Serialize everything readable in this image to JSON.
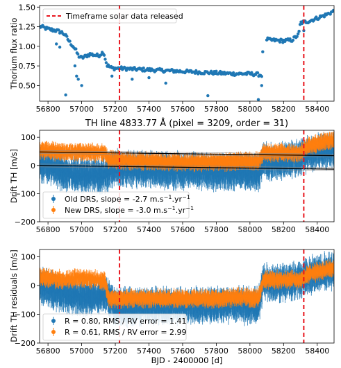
{
  "colors": {
    "blue": "#1f77b4",
    "orange": "#ff7f0e",
    "red": "#e8141c",
    "black": "#000000"
  },
  "xaxis": {
    "label": "BJD - 2400000 [d]",
    "range": [
      56750,
      58500
    ],
    "ticks": [
      56800,
      57000,
      57200,
      57400,
      57600,
      57800,
      58000,
      58200,
      58400
    ]
  },
  "event_lines": [
    57225,
    58320
  ],
  "chart_data": [
    {
      "type": "scatter",
      "title": "",
      "ylabel": "Thorium flux ratio",
      "ylim": [
        0.3,
        1.52
      ],
      "yticks": [
        0.5,
        0.75,
        1.0,
        1.25,
        1.5
      ],
      "ytick_labels": [
        "0.50",
        "0.75",
        "1.00",
        "1.25",
        "1.50"
      ],
      "legend": {
        "position": "top-left",
        "entries": [
          "Timeframe solar data released"
        ]
      },
      "series": [
        {
          "color": "blue",
          "x": [
            56760,
            56800,
            56850,
            56880,
            56900,
            56930,
            56950,
            56965,
            56980,
            57000,
            57050,
            57100,
            57130,
            57150,
            57180,
            57220,
            57300,
            57400,
            57500,
            57600,
            57700,
            57800,
            57900,
            58000,
            58050,
            58070,
            58080,
            58120,
            58200,
            58250,
            58290,
            58300,
            58350,
            58400,
            58450,
            58500
          ],
          "y": [
            1.25,
            1.22,
            1.2,
            1.18,
            1.15,
            1.05,
            1.0,
            0.95,
            0.88,
            0.85,
            0.9,
            0.88,
            0.93,
            0.76,
            0.72,
            0.72,
            0.71,
            0.7,
            0.69,
            0.68,
            0.67,
            0.66,
            0.65,
            0.65,
            0.64,
            0.63,
            1.1,
            1.08,
            1.07,
            1.08,
            1.15,
            1.3,
            1.32,
            1.36,
            1.4,
            1.45
          ]
        }
      ],
      "outliers": {
        "x": [
          56850,
          56870,
          56905,
          56960,
          56970,
          56980,
          57000,
          57180,
          57300,
          57400,
          57500,
          57750,
          58050,
          58070,
          58320
        ],
        "y": [
          1.03,
          0.99,
          0.38,
          0.75,
          0.62,
          0.58,
          0.5,
          0.62,
          0.58,
          0.6,
          0.53,
          0.37,
          0.32,
          0.5,
          1.2
        ]
      }
    },
    {
      "type": "scatter",
      "title": "TH line 4833.77 Å (pixel = 3209, order = 31)",
      "ylabel": "Drift TH [m/s]",
      "ylim": [
        -200,
        125
      ],
      "yticks": [
        -200,
        -100,
        0,
        100
      ],
      "ytick_labels": [
        "−200",
        "−100",
        "0",
        "100"
      ],
      "legend": {
        "position": "bottom-left",
        "entries": [
          {
            "label": "Old DRS, slope = -2.7 m.s",
            "sup1": "−1",
            "mid": ".yr",
            "sup2": "−1",
            "color": "blue"
          },
          {
            "label": "New DRS, slope = -3.0 m.s",
            "sup1": "−1",
            "mid": ".yr",
            "sup2": "−1",
            "color": "orange"
          }
        ]
      },
      "series": [
        {
          "name": "Old DRS",
          "color": "blue",
          "x": [
            56750,
            56900,
            57000,
            57100,
            57150,
            57200,
            57400,
            57600,
            57800,
            57950,
            58050,
            58080,
            58150,
            58300,
            58350,
            58450,
            58500
          ],
          "y": [
            10,
            -25,
            -35,
            -35,
            -30,
            -10,
            -15,
            -20,
            -25,
            -20,
            -30,
            20,
            10,
            30,
            40,
            55,
            60
          ],
          "spread": 50
        },
        {
          "name": "New DRS",
          "color": "orange",
          "x": [
            56750,
            56900,
            57000,
            57100,
            57140,
            57160,
            57400,
            57600,
            57800,
            57950,
            58050,
            58080,
            58150,
            58300,
            58350,
            58450,
            58500
          ],
          "y": [
            55,
            48,
            48,
            45,
            45,
            20,
            15,
            12,
            12,
            15,
            15,
            45,
            45,
            45,
            70,
            85,
            90
          ],
          "spread": 25
        }
      ],
      "fit_lines": [
        {
          "x": [
            56750,
            58500
          ],
          "y": [
            48,
            35
          ]
        },
        {
          "x": [
            56750,
            58500
          ],
          "y": [
            0,
            -13
          ]
        }
      ]
    },
    {
      "type": "scatter",
      "title": "",
      "ylabel": "Drift TH residuals [m/s]",
      "ylim": [
        -200,
        125
      ],
      "yticks": [
        -200,
        -100,
        0,
        100
      ],
      "ytick_labels": [
        "−200",
        "−100",
        "0",
        "100"
      ],
      "legend": {
        "position": "bottom-left",
        "entries": [
          {
            "label": "R = 0.80, RMS / RV error = 1.41",
            "color": "blue"
          },
          {
            "label": "R = 0.61, RMS / RV error = 2.99",
            "color": "orange"
          }
        ]
      },
      "series": [
        {
          "color": "blue",
          "x": [
            56750,
            56900,
            57000,
            57100,
            57150,
            57200,
            57400,
            57600,
            57800,
            57950,
            58050,
            58080,
            58150,
            58300,
            58350,
            58450,
            58500
          ],
          "y": [
            0,
            -30,
            -40,
            -40,
            -30,
            -75,
            -70,
            -70,
            -70,
            -65,
            -75,
            15,
            5,
            20,
            35,
            50,
            55
          ],
          "spread": 50
        },
        {
          "color": "orange",
          "x": [
            56750,
            56900,
            57000,
            57100,
            57140,
            57160,
            57400,
            57600,
            57800,
            57950,
            58050,
            58080,
            58150,
            58300,
            58350,
            58450,
            58500
          ],
          "y": [
            30,
            20,
            25,
            20,
            15,
            -45,
            -45,
            -45,
            -45,
            -40,
            -45,
            20,
            20,
            20,
            40,
            55,
            60
          ],
          "spread": 25
        }
      ]
    }
  ]
}
